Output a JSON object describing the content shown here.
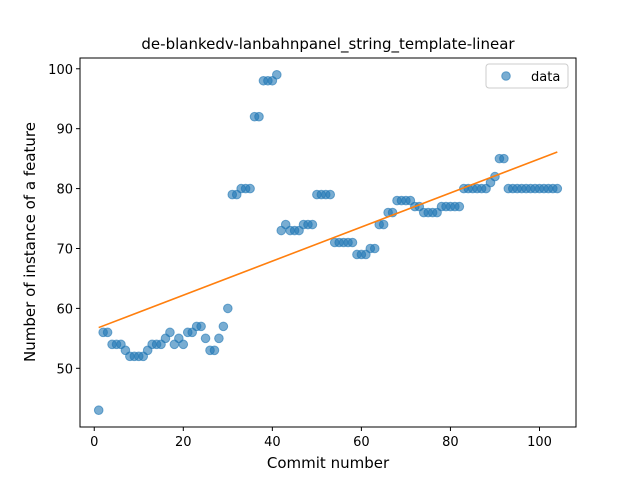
{
  "chart_data": {
    "type": "scatter",
    "title": "de-blankedv-lanbahnpanel_string_template-linear",
    "xlabel": "Commit number",
    "ylabel": "Number of instance of a feature",
    "xlim": [
      -3.2,
      108.2
    ],
    "ylim": [
      40.2,
      101.8
    ],
    "xticks": [
      0,
      20,
      40,
      60,
      80,
      100
    ],
    "yticks": [
      50,
      60,
      70,
      80,
      90,
      100
    ],
    "grid": false,
    "legend_position": "top-right",
    "series": [
      {
        "name": "data",
        "kind": "scatter",
        "color": "#1f77b4",
        "x": [
          1,
          2,
          3,
          4,
          5,
          6,
          7,
          8,
          9,
          10,
          11,
          12,
          13,
          14,
          15,
          16,
          17,
          18,
          19,
          20,
          21,
          22,
          23,
          24,
          25,
          26,
          27,
          28,
          29,
          30,
          31,
          32,
          33,
          34,
          35,
          36,
          37,
          38,
          39,
          40,
          41,
          42,
          43,
          44,
          45,
          46,
          47,
          48,
          49,
          50,
          51,
          52,
          53,
          54,
          55,
          56,
          57,
          58,
          59,
          60,
          61,
          62,
          63,
          64,
          65,
          66,
          67,
          68,
          69,
          70,
          71,
          72,
          73,
          74,
          75,
          76,
          77,
          78,
          79,
          80,
          81,
          82,
          83,
          84,
          85,
          86,
          87,
          88,
          89,
          90,
          91,
          92,
          93,
          94,
          95,
          96,
          97,
          98,
          99,
          100,
          101,
          102,
          103,
          104
        ],
        "y": [
          43,
          56,
          56,
          54,
          54,
          54,
          53,
          52,
          52,
          52,
          52,
          53,
          54,
          54,
          54,
          55,
          56,
          54,
          55,
          54,
          56,
          56,
          57,
          57,
          55,
          53,
          53,
          55,
          57,
          60,
          79,
          79,
          80,
          80,
          80,
          92,
          92,
          98,
          98,
          98,
          99,
          73,
          74,
          73,
          73,
          73,
          74,
          74,
          74,
          79,
          79,
          79,
          79,
          71,
          71,
          71,
          71,
          71,
          69,
          69,
          69,
          70,
          70,
          74,
          74,
          76,
          76,
          78,
          78,
          78,
          78,
          77,
          77,
          76,
          76,
          76,
          76,
          77,
          77,
          77,
          77,
          77,
          80,
          80,
          80,
          80,
          80,
          80,
          81,
          82,
          85,
          85,
          80,
          80,
          80,
          80,
          80,
          80,
          80,
          80,
          80,
          80,
          80,
          80
        ]
      },
      {
        "name": "",
        "kind": "line",
        "color": "#ff7f0e",
        "x": [
          1,
          104
        ],
        "y": [
          56.8,
          86.1
        ]
      }
    ]
  }
}
